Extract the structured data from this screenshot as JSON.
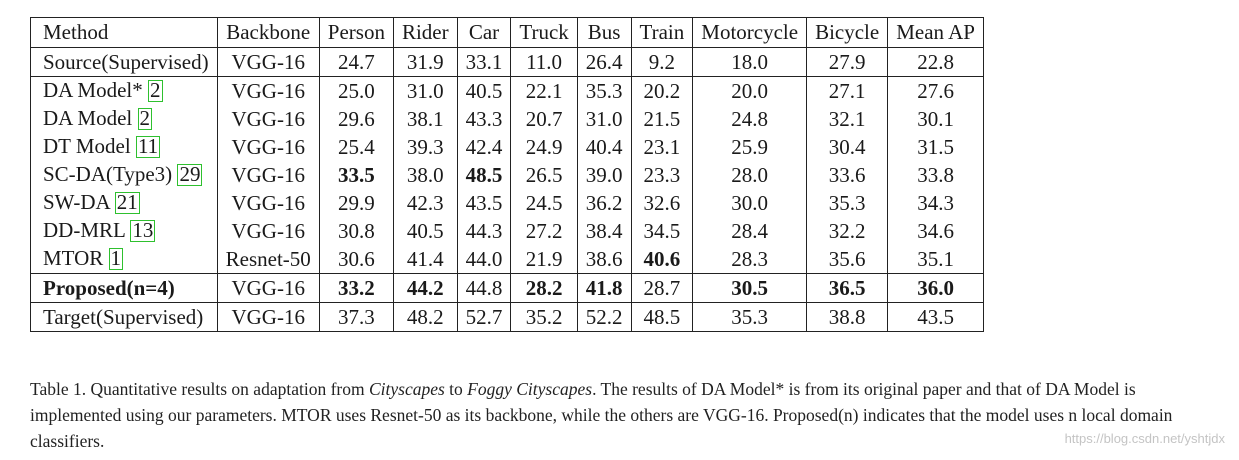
{
  "columns": [
    "Method",
    "Backbone",
    "Person",
    "Rider",
    "Car",
    "Truck",
    "Bus",
    "Train",
    "Motorcycle",
    "Bicycle",
    "Mean AP"
  ],
  "rows": [
    {
      "method": "Source(Supervised)",
      "ref": "",
      "backbone": "VGG-16",
      "values": [
        "24.7",
        "31.9",
        "33.1",
        "11.0",
        "26.4",
        "9.2",
        "18.0",
        "27.9",
        "22.8"
      ]
    },
    {
      "method": "DA Model*",
      "ref": "2",
      "backbone": "VGG-16",
      "values": [
        "25.0",
        "31.0",
        "40.5",
        "22.1",
        "35.3",
        "20.2",
        "20.0",
        "27.1",
        "27.6"
      ]
    },
    {
      "method": "DA Model",
      "ref": "2",
      "backbone": "VGG-16",
      "values": [
        "29.6",
        "38.1",
        "43.3",
        "20.7",
        "31.0",
        "21.5",
        "24.8",
        "32.1",
        "30.1"
      ]
    },
    {
      "method": "DT Model",
      "ref": "11",
      "backbone": "VGG-16",
      "values": [
        "25.4",
        "39.3",
        "42.4",
        "24.9",
        "40.4",
        "23.1",
        "25.9",
        "30.4",
        "31.5"
      ]
    },
    {
      "method": "SC-DA(Type3)",
      "ref": "29",
      "backbone": "VGG-16",
      "values": [
        "33.5",
        "38.0",
        "48.5",
        "26.5",
        "39.0",
        "23.3",
        "28.0",
        "33.6",
        "33.8"
      ]
    },
    {
      "method": "SW-DA",
      "ref": "21",
      "backbone": "VGG-16",
      "values": [
        "29.9",
        "42.3",
        "43.5",
        "24.5",
        "36.2",
        "32.6",
        "30.0",
        "35.3",
        "34.3"
      ]
    },
    {
      "method": "DD-MRL",
      "ref": "13",
      "backbone": "VGG-16",
      "values": [
        "30.8",
        "40.5",
        "44.3",
        "27.2",
        "38.4",
        "34.5",
        "28.4",
        "32.2",
        "34.6"
      ]
    },
    {
      "method": "MTOR",
      "ref": "1",
      "backbone": "Resnet-50",
      "values": [
        "30.6",
        "41.4",
        "44.0",
        "21.9",
        "38.6",
        "40.6",
        "28.3",
        "35.6",
        "35.1"
      ]
    },
    {
      "method": "Proposed(n=4)",
      "ref": "",
      "backbone": "VGG-16",
      "values": [
        "33.2",
        "44.2",
        "44.8",
        "28.2",
        "41.8",
        "28.7",
        "30.5",
        "36.5",
        "36.0"
      ]
    },
    {
      "method": "Target(Supervised)",
      "ref": "",
      "backbone": "VGG-16",
      "values": [
        "37.3",
        "48.2",
        "52.7",
        "35.2",
        "52.2",
        "48.5",
        "35.3",
        "38.8",
        "43.5"
      ]
    }
  ],
  "caption": {
    "p1": "Table 1. Quantitative results on adaptation from ",
    "em1": "Cityscapes",
    "p2": " to ",
    "em2": "Foggy Cityscapes",
    "p3": ". The results of DA Model* is from its original paper and that of DA Model is implemented using our parameters. MTOR uses Resnet-50 as its backbone, while the others are VGG-16. Proposed(n) indicates that the model uses n local domain classifiers."
  },
  "watermark": "https://blog.csdn.net/yshtjdx"
}
